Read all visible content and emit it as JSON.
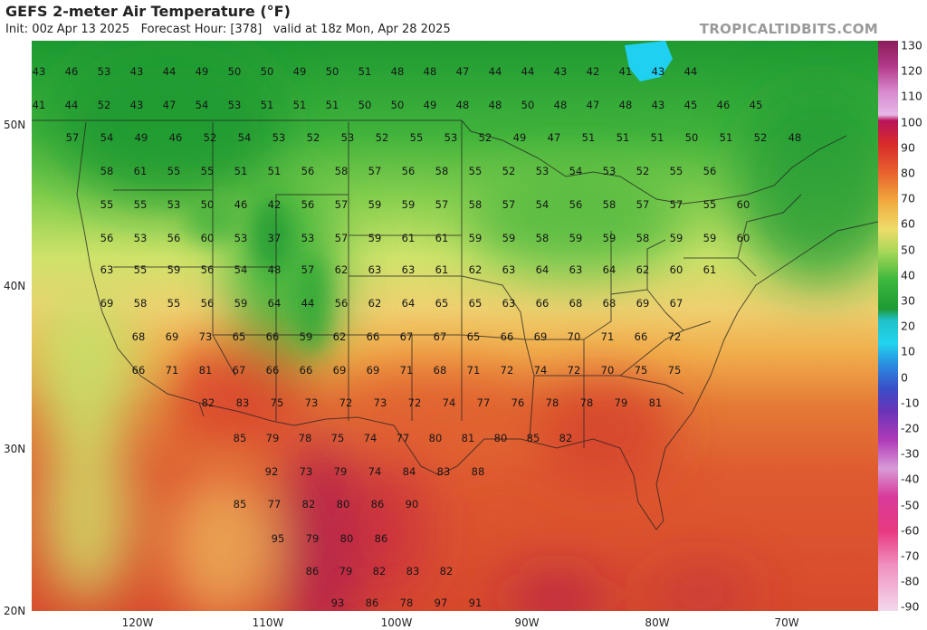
{
  "header": {
    "title": "GEFS 2-meter Air Temperature (°F)",
    "init": "Init: 00z Apr 13 2025",
    "forecast_hour": "Forecast Hour: [378]",
    "valid": "valid at 18z Mon, Apr 28 2025",
    "brand": "TROPICALTIDBITS.COM"
  },
  "axes": {
    "lat_labels": [
      "50N",
      "40N",
      "30N",
      "20N"
    ],
    "lon_labels": [
      "120W",
      "110W",
      "100W",
      "90W",
      "80W",
      "70W"
    ]
  },
  "colorbar": {
    "ticks": [
      "130",
      "120",
      "110",
      "100",
      "90",
      "80",
      "70",
      "60",
      "50",
      "40",
      "30",
      "20",
      "10",
      "0",
      "-10",
      "-20",
      "-30",
      "-40",
      "-50",
      "-60",
      "-70",
      "-80",
      "-90"
    ]
  },
  "colors": {
    "cold": "#1a9e2e",
    "cool": "#5cc140",
    "mild": "#d9e874",
    "warm": "#f0a040",
    "hot": "#d8402a",
    "very_hot": "#b01850",
    "water_ice": "#20d0f0"
  },
  "rows": [
    {
      "v": [
        "43",
        "46",
        "53",
        "43",
        "44",
        "49",
        "50",
        "50",
        "49",
        "50",
        "51",
        "48",
        "48",
        "47",
        "44",
        "44",
        "43",
        "42",
        "41",
        "43",
        "44"
      ]
    },
    {
      "v": [
        "41",
        "44",
        "52",
        "43",
        "47",
        "54",
        "53",
        "51",
        "51",
        "51",
        "50",
        "50",
        "49",
        "48",
        "48",
        "50",
        "48",
        "47",
        "48",
        "43",
        "45",
        "46",
        "45"
      ]
    },
    {
      "v": [
        "57",
        "54",
        "49",
        "46",
        "52",
        "54",
        "53",
        "52",
        "53",
        "52",
        "55",
        "53",
        "52",
        "49",
        "47",
        "51",
        "51",
        "51",
        "50",
        "51",
        "52",
        "48"
      ]
    },
    {
      "v": [
        "58",
        "61",
        "55",
        "55",
        "51",
        "51",
        "56",
        "58",
        "57",
        "56",
        "58",
        "55",
        "52",
        "53",
        "54",
        "53",
        "52",
        "55",
        "56"
      ]
    },
    {
      "v": [
        "55",
        "55",
        "53",
        "50",
        "46",
        "42",
        "56",
        "57",
        "59",
        "59",
        "57",
        "58",
        "57",
        "54",
        "56",
        "58",
        "57",
        "57",
        "55",
        "60"
      ]
    },
    {
      "v": [
        "56",
        "53",
        "56",
        "60",
        "53",
        "37",
        "53",
        "57",
        "59",
        "61",
        "61",
        "59",
        "59",
        "58",
        "59",
        "59",
        "58",
        "59",
        "59",
        "60"
      ]
    },
    {
      "v": [
        "63",
        "55",
        "59",
        "56",
        "54",
        "48",
        "57",
        "62",
        "63",
        "63",
        "61",
        "62",
        "63",
        "64",
        "63",
        "64",
        "62",
        "60",
        "61"
      ]
    },
    {
      "v": [
        "69",
        "58",
        "55",
        "56",
        "59",
        "64",
        "44",
        "56",
        "62",
        "64",
        "65",
        "65",
        "63",
        "66",
        "68",
        "68",
        "69",
        "67"
      ]
    },
    {
      "v": [
        "68",
        "69",
        "73",
        "65",
        "66",
        "59",
        "62",
        "66",
        "67",
        "67",
        "65",
        "66",
        "69",
        "70",
        "71",
        "66",
        "72"
      ]
    },
    {
      "v": [
        "66",
        "71",
        "81",
        "67",
        "66",
        "66",
        "69",
        "69",
        "71",
        "68",
        "71",
        "72",
        "74",
        "72",
        "70",
        "75",
        "75"
      ]
    },
    {
      "v": [
        "82",
        "83",
        "75",
        "73",
        "72",
        "73",
        "72",
        "74",
        "77",
        "76",
        "78",
        "78",
        "79",
        "81"
      ]
    },
    {
      "v": [
        "85",
        "79",
        "78",
        "75",
        "74",
        "77",
        "80",
        "81",
        "80",
        "85",
        "82"
      ]
    },
    {
      "v": [
        "92",
        "73",
        "79",
        "74",
        "84",
        "83",
        "88"
      ]
    },
    {
      "v": [
        "85",
        "77",
        "82",
        "80",
        "86",
        "90"
      ]
    },
    {
      "v": [
        "95",
        "79",
        "80",
        "86"
      ]
    },
    {
      "v": [
        "86",
        "79",
        "82",
        "83",
        "82"
      ]
    },
    {
      "v": [
        "93",
        "86",
        "78",
        "97",
        "91"
      ]
    }
  ]
}
